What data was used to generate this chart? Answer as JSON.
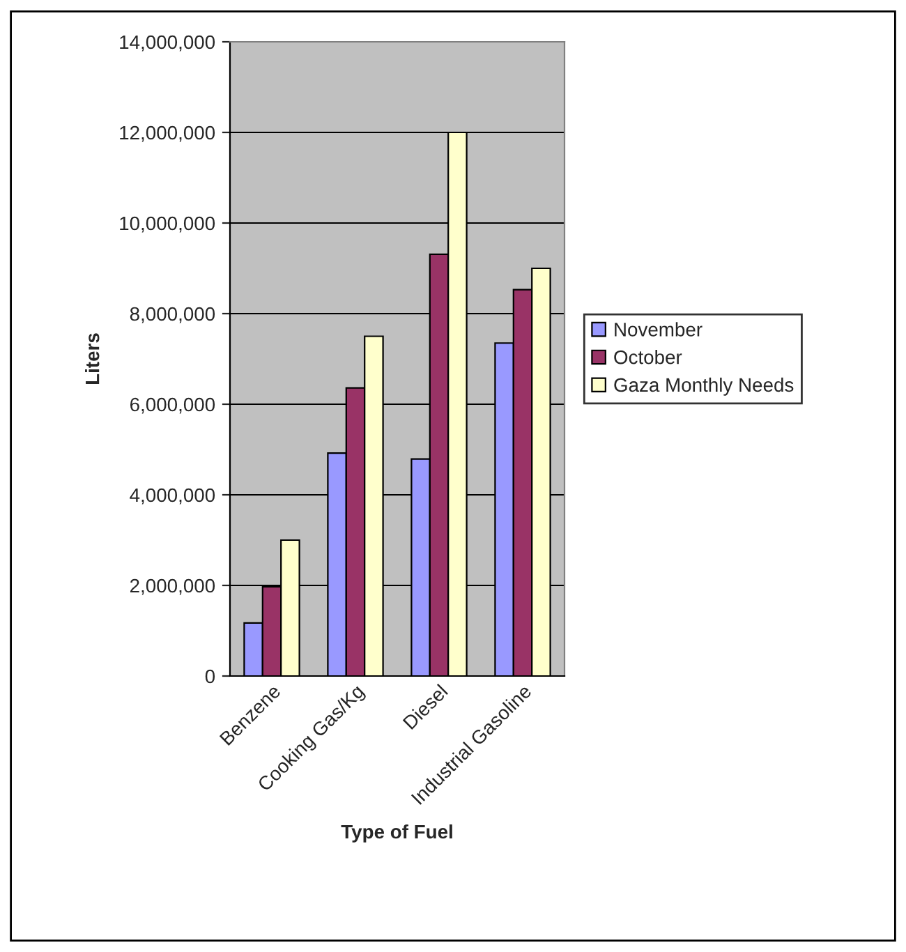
{
  "chart_data": {
    "type": "bar",
    "xlabel": "Type of Fuel",
    "ylabel": "Liters",
    "categories": [
      "Benzene",
      "Cooking Gas/Kg",
      "Diesel",
      "Industrial Gasoline"
    ],
    "series": [
      {
        "name": "November",
        "color": "#9999ff",
        "values": [
          1170000,
          4920000,
          4790000,
          7350000
        ]
      },
      {
        "name": "October",
        "color": "#993366",
        "values": [
          1970000,
          6360000,
          9310000,
          8530000
        ]
      },
      {
        "name": "Gaza Monthly Needs",
        "color": "#ffffcc",
        "values": [
          3000000,
          7500000,
          12000000,
          9000000
        ]
      }
    ],
    "ylim": [
      0,
      14000000
    ],
    "yticks": [
      {
        "value": 0,
        "label": "0"
      },
      {
        "value": 2000000,
        "label": "2,000,000"
      },
      {
        "value": 4000000,
        "label": "4,000,000"
      },
      {
        "value": 6000000,
        "label": "6,000,000"
      },
      {
        "value": 8000000,
        "label": "8,000,000"
      },
      {
        "value": 10000000,
        "label": "10,000,000"
      },
      {
        "value": 12000000,
        "label": "12,000,000"
      },
      {
        "value": 14000000,
        "label": "14,000,000"
      }
    ],
    "grid": "y",
    "legend": "right"
  }
}
